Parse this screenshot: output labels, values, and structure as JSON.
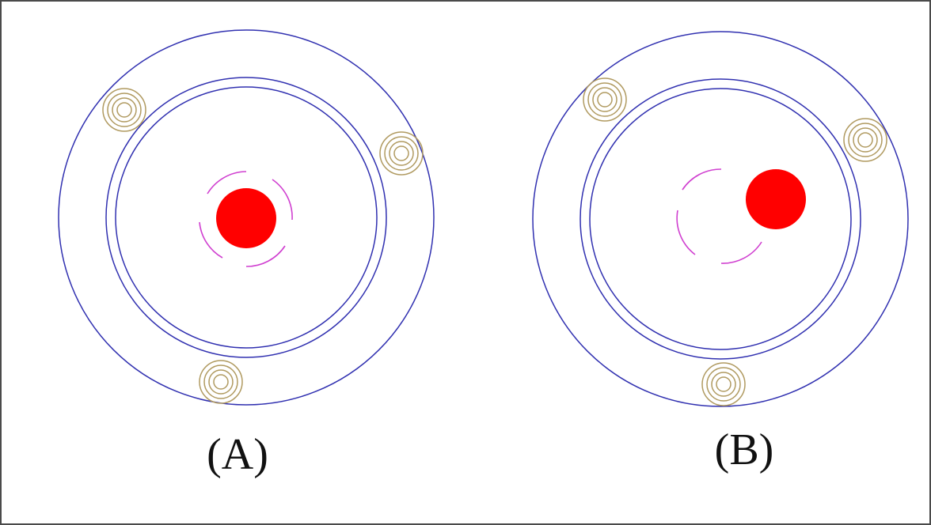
{
  "panels": [
    {
      "label": "(A)",
      "rotor": {
        "state": "centered"
      }
    },
    {
      "label": "(B)",
      "rotor": {
        "state": "offset"
      }
    }
  ],
  "colors": {
    "frame": "#4a4a4a",
    "rings": "#3030b0",
    "bearing_rollers": "#b09a60",
    "rotor": "#ff0000",
    "orbit_arcs": "#d040d0"
  },
  "icons": {
    "roller": "concentric-rings-icon",
    "rotor": "filled-circle-icon"
  }
}
